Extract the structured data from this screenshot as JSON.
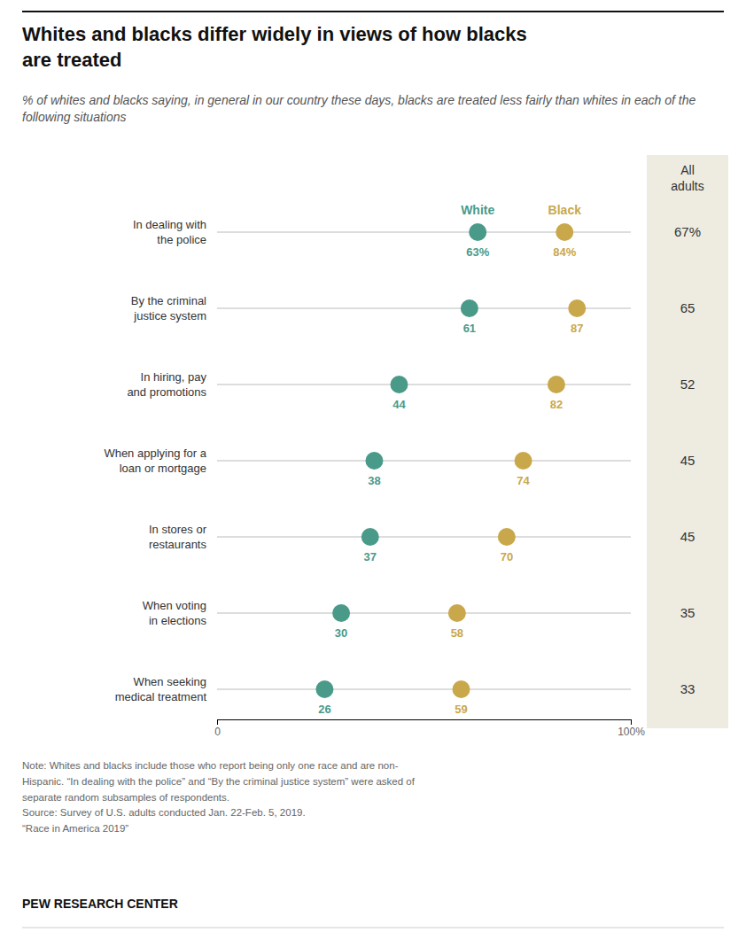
{
  "chart_data": {
    "type": "dot",
    "title": "Whites and blacks differ widely in views of how blacks\nare treated",
    "subtitle": "% of whites and blacks saying, in general in our country these days, blacks are treated less fairly than whites in each of the following situations",
    "categories": [
      "In dealing with\nthe police",
      "By the criminal\njustice system",
      "In hiring, pay\nand promotions",
      "When applying for a\nloan or mortgage",
      "In stores or\nrestaurants",
      "When voting\nin elections",
      "When seeking\nmedical treatment"
    ],
    "series": [
      {
        "name": "White",
        "color": "#4a9a8a",
        "values": [
          63,
          61,
          44,
          38,
          37,
          30,
          26
        ],
        "value_labels": [
          "63%",
          "61",
          "44",
          "38",
          "37",
          "30",
          "26"
        ]
      },
      {
        "name": "Black",
        "color": "#c9a84c",
        "values": [
          84,
          87,
          82,
          74,
          70,
          58,
          59
        ],
        "value_labels": [
          "84%",
          "87",
          "82",
          "74",
          "70",
          "58",
          "59"
        ]
      }
    ],
    "all_adults": {
      "label": "All\nadults",
      "values": [
        67,
        65,
        52,
        45,
        45,
        35,
        33
      ],
      "value_labels": [
        "67%",
        "65",
        "52",
        "45",
        "45",
        "35",
        "33"
      ]
    },
    "xlim": [
      0,
      100
    ],
    "xticks": [
      0,
      {
        "value": 100,
        "label": "100%"
      }
    ],
    "grid": false,
    "data_labels": true,
    "note": "Note: Whites and blacks include those who report being only one race and are non-\nHispanic. “In dealing with the police” and “By the criminal justice system” were asked of\nseparate random subsamples of respondents.\nSource: Survey of U.S. adults conducted Jan. 22-Feb. 5, 2019.\n“Race in America 2019”",
    "footer": "PEW RESEARCH CENTER"
  }
}
